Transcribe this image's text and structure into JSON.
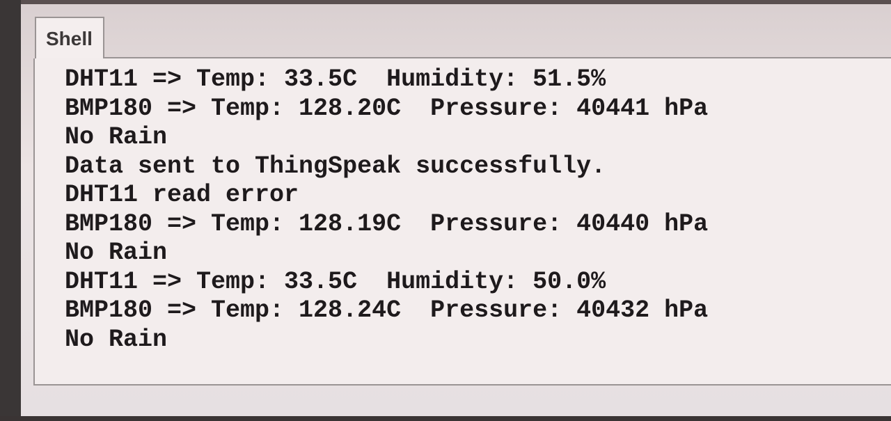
{
  "tab": {
    "label": "Shell"
  },
  "shell": {
    "lines": [
      "DHT11 => Temp: 33.5C  Humidity: 51.5%",
      "BMP180 => Temp: 128.20C  Pressure: 40441 hPa",
      "No Rain",
      "Data sent to ThingSpeak successfully.",
      "DHT11 read error",
      "BMP180 => Temp: 128.19C  Pressure: 40440 hPa",
      "No Rain",
      "DHT11 => Temp: 33.5C  Humidity: 50.0%",
      "BMP180 => Temp: 128.24C  Pressure: 40432 hPa",
      "No Rain"
    ]
  }
}
